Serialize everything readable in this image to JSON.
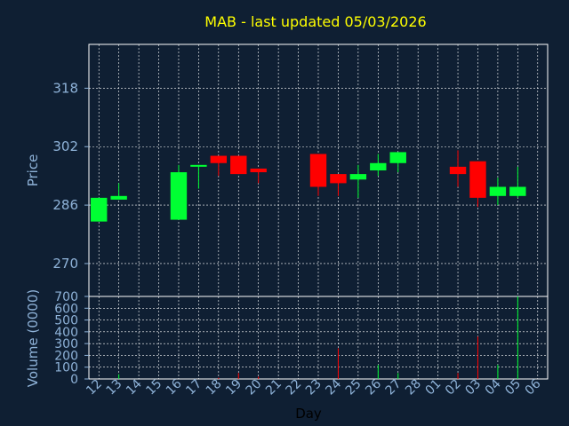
{
  "chart_data": {
    "type": "candlestick",
    "title": "MAB - last updated 05/03/2026",
    "xlabel": "Day",
    "ylabel": "Price",
    "volume_label": "Volume (0000)",
    "price_ticks": [
      270,
      286,
      302,
      318
    ],
    "price_range": [
      261,
      330
    ],
    "volume_ticks": [
      0,
      100,
      200,
      300,
      400,
      500,
      600,
      700
    ],
    "volume_range": [
      0,
      700
    ],
    "x_ticks": [
      "12",
      "13",
      "14",
      "15",
      "16",
      "17",
      "18",
      "19",
      "20",
      "21",
      "22",
      "23",
      "24",
      "25",
      "26",
      "27",
      "28",
      "01",
      "02",
      "03",
      "04",
      "05",
      "06"
    ],
    "up_color": "#00ff33",
    "down_color": "#ff0000",
    "title_color": "#ffff00",
    "axis_color": "#8fb3d9",
    "background": "#0f1f33",
    "candles": [
      {
        "day": "12",
        "open": 281.5,
        "close": 288,
        "high": 288,
        "low": 281.5,
        "volume": 0
      },
      {
        "day": "13",
        "open": 287.5,
        "close": 288.5,
        "high": 292,
        "low": 287.5,
        "volume": 40
      },
      {
        "day": "16",
        "open": 282,
        "close": 295,
        "high": 297,
        "low": 282,
        "volume": 0
      },
      {
        "day": "17",
        "open": 296.5,
        "close": 297,
        "high": 297,
        "low": 290.5,
        "volume": 0
      },
      {
        "day": "18",
        "open": 299.5,
        "close": 297.5,
        "high": 299.5,
        "low": 294,
        "volume": 10
      },
      {
        "day": "19",
        "open": 299.5,
        "close": 294.5,
        "high": 299.5,
        "low": 294.5,
        "volume": 50
      },
      {
        "day": "20",
        "open": 296,
        "close": 295,
        "high": 296,
        "low": 292,
        "volume": 20
      },
      {
        "day": "23",
        "open": 300,
        "close": 291,
        "high": 300,
        "low": 288.5,
        "volume": 0
      },
      {
        "day": "24",
        "open": 294.5,
        "close": 292,
        "high": 294.5,
        "low": 288.5,
        "volume": 260
      },
      {
        "day": "25",
        "open": 293,
        "close": 294.5,
        "high": 297,
        "low": 288,
        "volume": 0
      },
      {
        "day": "26",
        "open": 295.5,
        "close": 297.5,
        "high": 300,
        "low": 294,
        "volume": 120
      },
      {
        "day": "27",
        "open": 297.5,
        "close": 300.5,
        "high": 300.5,
        "low": 295,
        "volume": 50
      },
      {
        "day": "02",
        "open": 296.5,
        "close": 294.5,
        "high": 301,
        "low": 291,
        "volume": 50
      },
      {
        "day": "03",
        "open": 298,
        "close": 288,
        "high": 298,
        "low": 285.5,
        "volume": 360
      },
      {
        "day": "04",
        "open": 288.5,
        "close": 291,
        "high": 293.5,
        "low": 286,
        "volume": 120
      },
      {
        "day": "05",
        "open": 288.5,
        "close": 291,
        "high": 296.5,
        "low": 288,
        "volume": 700
      }
    ]
  }
}
